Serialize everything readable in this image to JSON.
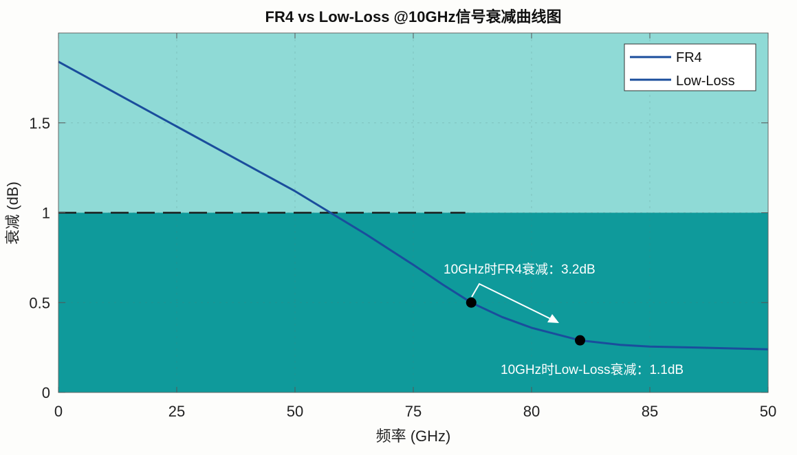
{
  "chart_data": {
    "type": "line",
    "title": "FR4 vs Low-Loss @10GHz信号衰减曲线图",
    "xlabel": "频率 (GHz)",
    "ylabel": "衰减 (dB)",
    "x_tick_labels": [
      "0",
      "25",
      "50",
      "75",
      "80",
      "85",
      "50"
    ],
    "y_ticks": [
      0,
      0.5,
      1,
      1.5
    ],
    "y_tick_labels": [
      "0",
      "0.5",
      "1",
      "1.5"
    ],
    "xlim": [
      0,
      6
    ],
    "ylim": [
      0,
      2
    ],
    "grid": true,
    "legend_position": "top-right",
    "region_colors": {
      "above_threshold": "#8fdad6",
      "below_threshold": "#0f9a9b"
    },
    "threshold": {
      "y": 1,
      "x_end": 3.44,
      "style": "dashed"
    },
    "series": [
      {
        "name": "FR4",
        "color": "#1a4d9c",
        "points": [
          [
            0,
            1.84
          ],
          [
            0.5,
            1.66
          ],
          [
            1,
            1.48
          ],
          [
            1.5,
            1.3
          ],
          [
            2,
            1.12
          ],
          [
            2.3,
            1.0
          ],
          [
            2.6,
            0.88
          ],
          [
            3,
            0.71
          ],
          [
            3.25,
            0.6
          ],
          [
            3.49,
            0.5
          ],
          [
            3.75,
            0.42
          ],
          [
            4,
            0.36
          ],
          [
            4.41,
            0.29
          ],
          [
            4.75,
            0.265
          ],
          [
            5,
            0.255
          ],
          [
            5.5,
            0.248
          ],
          [
            6,
            0.24
          ]
        ]
      },
      {
        "name": "Low-Loss",
        "color": "#1a4d9c",
        "points": []
      }
    ],
    "markers": [
      [
        3.49,
        0.5
      ],
      [
        4.41,
        0.29
      ]
    ],
    "annotations": [
      {
        "text": "10GHz时FR4衰减：3.2dB"
      },
      {
        "text": "10GHz时Low-Loss衰减：1.1dB"
      }
    ]
  }
}
